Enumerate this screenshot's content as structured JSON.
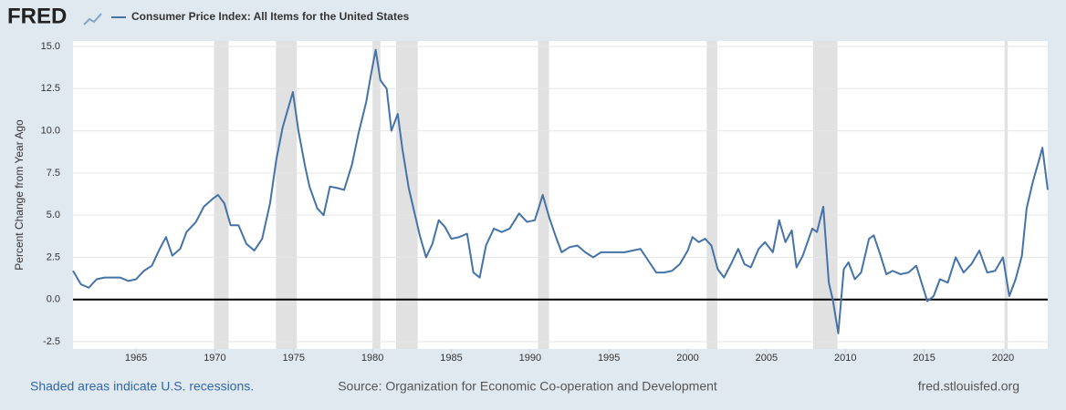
{
  "logo": "FRED",
  "footer": {
    "note": "Shaded areas indicate U.S. recessions.",
    "source": "Source: Organization for Economic Co-operation and Development",
    "site": "fred.stlouisfed.org"
  },
  "chart_data": {
    "type": "line",
    "ylabel": "Percent Change from Year Ago",
    "x": [
      1961.0,
      1961.5,
      1962,
      1962.5,
      1963,
      1963.5,
      1964,
      1964.5,
      1965,
      1965.5,
      1966,
      1966.5,
      1966.9,
      1967.3,
      1967.8,
      1968.2,
      1968.8,
      1969.3,
      1969.9,
      1970.2,
      1970.6,
      1971,
      1971.5,
      1972,
      1972.5,
      1973,
      1973.5,
      1973.9,
      1974.3,
      1974.7,
      1974.95,
      1975.3,
      1975.7,
      1976,
      1976.5,
      1976.9,
      1977.3,
      1977.8,
      1978.2,
      1978.7,
      1979.1,
      1979.6,
      1979.9,
      1980.2,
      1980.5,
      1980.9,
      1981.2,
      1981.6,
      1981.9,
      1982.3,
      1982.7,
      1983,
      1983.4,
      1983.8,
      1984.2,
      1984.6,
      1985,
      1985.5,
      1986,
      1986.4,
      1986.8,
      1987.2,
      1987.7,
      1988.2,
      1988.7,
      1989.3,
      1989.8,
      1990.3,
      1990.8,
      1991.2,
      1991.6,
      1992,
      1992.5,
      1993,
      1993.5,
      1994,
      1994.5,
      1995,
      1995.5,
      1996,
      1996.5,
      1997,
      1997.5,
      1998,
      1998.5,
      1999,
      1999.5,
      2000,
      2000.3,
      2000.7,
      2001.1,
      2001.5,
      2001.9,
      2002.3,
      2002.8,
      2003.2,
      2003.6,
      2004,
      2004.5,
      2004.9,
      2005.4,
      2005.8,
      2006.2,
      2006.6,
      2006.9,
      2007.3,
      2007.9,
      2008.2,
      2008.6,
      2008.95,
      2009.2,
      2009.55,
      2009.9,
      2010.2,
      2010.6,
      2011,
      2011.5,
      2011.8,
      2012.2,
      2012.6,
      2013,
      2013.5,
      2014,
      2014.5,
      2014.9,
      2015.2,
      2015.6,
      2016,
      2016.5,
      2017,
      2017.5,
      2018,
      2018.5,
      2019,
      2019.5,
      2020,
      2020.4,
      2020.8,
      2021.2,
      2021.5,
      2021.9,
      2022.3,
      2022.5,
      2022.84
    ],
    "series": [
      {
        "name": "Consumer Price Index: All Items for the United States",
        "color": "#4572a7",
        "values": [
          1.7,
          0.9,
          0.7,
          1.2,
          1.3,
          1.3,
          1.3,
          1.1,
          1.2,
          1.7,
          2.0,
          3.0,
          3.7,
          2.6,
          3.0,
          4.0,
          4.6,
          5.5,
          6.0,
          6.2,
          5.7,
          4.4,
          4.4,
          3.3,
          2.9,
          3.6,
          5.7,
          8.3,
          10.2,
          11.5,
          12.3,
          10.0,
          8.0,
          6.7,
          5.4,
          5.0,
          6.7,
          6.6,
          6.5,
          8.0,
          9.8,
          11.7,
          13.3,
          14.8,
          13.0,
          12.5,
          10.0,
          11.0,
          8.9,
          6.6,
          5.0,
          3.8,
          2.5,
          3.3,
          4.7,
          4.3,
          3.6,
          3.7,
          3.9,
          1.6,
          1.3,
          3.2,
          4.2,
          4.0,
          4.2,
          5.1,
          4.6,
          4.7,
          6.2,
          4.9,
          3.8,
          2.8,
          3.1,
          3.2,
          2.8,
          2.5,
          2.8,
          2.8,
          2.8,
          2.8,
          2.9,
          3.0,
          2.3,
          1.6,
          1.6,
          1.7,
          2.1,
          2.9,
          3.7,
          3.4,
          3.6,
          3.2,
          1.8,
          1.3,
          2.2,
          3.0,
          2.1,
          1.9,
          3.0,
          3.4,
          2.8,
          4.7,
          3.4,
          4.1,
          1.9,
          2.6,
          4.2,
          4.0,
          5.5,
          1.0,
          0.0,
          -2.0,
          1.8,
          2.2,
          1.2,
          1.6,
          3.6,
          3.8,
          2.7,
          1.5,
          1.7,
          1.5,
          1.6,
          2.0,
          0.8,
          -0.1,
          0.2,
          1.2,
          1.0,
          2.5,
          1.6,
          2.1,
          2.9,
          1.6,
          1.7,
          2.5,
          0.2,
          1.2,
          2.6,
          5.4,
          7.0,
          8.3,
          9.0,
          6.5
        ]
      }
    ],
    "xlim": [
      1961,
      2022.84
    ],
    "xticks": [
      1965,
      1970,
      1975,
      1980,
      1985,
      1990,
      1995,
      2000,
      2005,
      2010,
      2015,
      2020
    ],
    "ylim": [
      -2.5,
      15
    ],
    "yticks": [
      -2.5,
      {
        "value": 0,
        "label": "0.0"
      },
      2.5,
      {
        "value": 5,
        "label": "5.0"
      },
      7.5,
      {
        "value": 10,
        "label": "10.0"
      },
      12.5,
      {
        "value": 15,
        "label": "15.0"
      }
    ],
    "grid": true,
    "recessions": [
      [
        1969.95,
        1970.87
      ],
      [
        1973.87,
        1975.2
      ],
      [
        1980.0,
        1980.5
      ],
      [
        1981.5,
        1982.87
      ],
      [
        1990.5,
        1991.2
      ],
      [
        2001.2,
        2001.87
      ],
      [
        2007.95,
        2009.5
      ],
      [
        2020.1,
        2020.3
      ]
    ],
    "recession_color": "#e1e1e1"
  }
}
